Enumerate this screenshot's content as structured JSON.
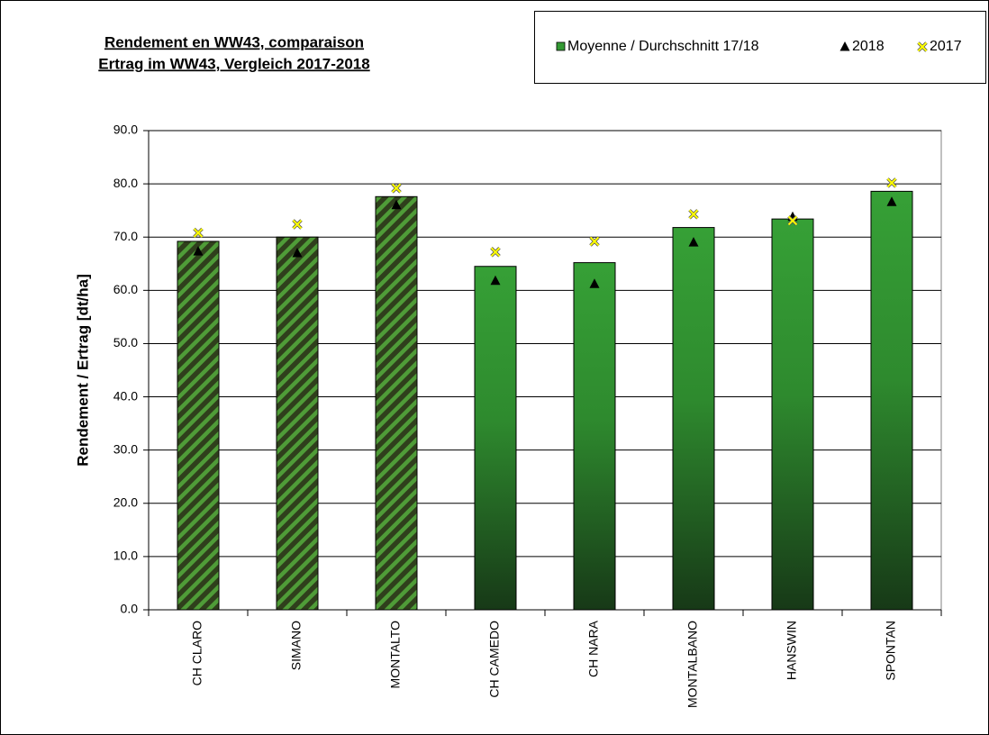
{
  "chart_data": {
    "type": "bar",
    "title": [
      "Rendement en WW43, comparaison",
      "Ertrag im WW43, Vergleich 2017-2018"
    ],
    "y_label": "Rendement / Ertrag [dt/ha]",
    "categories": [
      "CH CLARO",
      "SIMANO",
      "MONTALTO",
      "CH CAMEDO",
      "CH NARA",
      "MONTALBANO",
      "HANSWIN",
      "SPONTAN"
    ],
    "hatched": [
      true,
      true,
      true,
      false,
      false,
      false,
      false,
      false
    ],
    "series": [
      {
        "name": "Moyenne / Durchschnitt 17/18",
        "color": "#339933",
        "kind": "bar",
        "values": [
          69.2,
          70.0,
          77.6,
          64.5,
          65.2,
          71.8,
          73.4,
          78.6
        ]
      },
      {
        "name": "2018",
        "color": "#000000",
        "kind": "triangle",
        "values": [
          67.3,
          67.0,
          76.0,
          61.8,
          61.2,
          69.0,
          73.8,
          76.6
        ]
      },
      {
        "name": "2017",
        "color": "#ffff00",
        "kind": "x",
        "values": [
          70.8,
          72.4,
          79.2,
          67.2,
          69.2,
          74.3,
          73.1,
          80.2
        ]
      }
    ],
    "ylim": [
      0,
      90
    ],
    "yticks": [
      {
        "value": 0,
        "label": "0.0"
      },
      {
        "value": 10,
        "label": "10.0"
      },
      {
        "value": 20,
        "label": "20.0"
      },
      {
        "value": 30,
        "label": "30.0"
      },
      {
        "value": 40,
        "label": "40.0"
      },
      {
        "value": 50,
        "label": "50.0"
      },
      {
        "value": 60,
        "label": "60.0"
      },
      {
        "value": 70,
        "label": "70.0"
      },
      {
        "value": 80,
        "label": "80.0"
      },
      {
        "value": 90,
        "label": "90.0"
      }
    ],
    "grid": true,
    "legend": "top-right"
  }
}
